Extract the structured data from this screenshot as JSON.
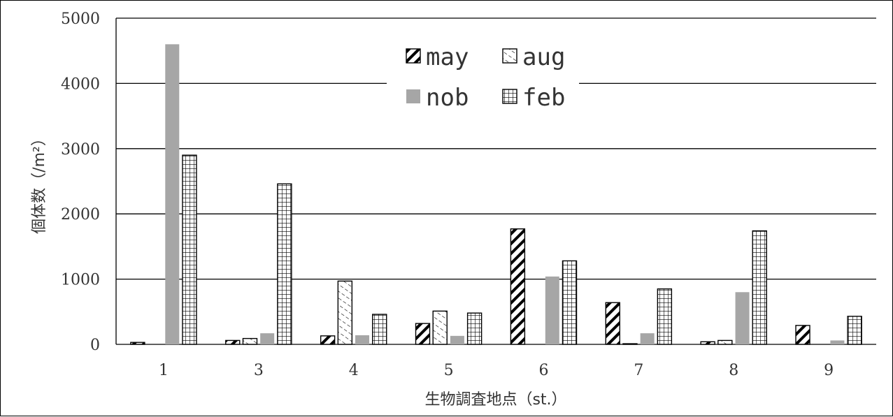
{
  "chart_data": {
    "type": "bar",
    "title": "",
    "xlabel": "生物調査地点（st.）",
    "ylabel": "個体数（/m²）",
    "ylim": [
      0,
      5000
    ],
    "yticks": [
      "0",
      "1000",
      "2000",
      "3000",
      "4000",
      "5000"
    ],
    "categories": [
      "1",
      "3",
      "4",
      "5",
      "6",
      "7",
      "8",
      "9"
    ],
    "grid": true,
    "legend": "top-center",
    "series": [
      {
        "name": "may",
        "pattern": "diagonal-bold",
        "values": [
          30,
          60,
          130,
          320,
          1770,
          640,
          40,
          290
        ]
      },
      {
        "name": "aug",
        "pattern": "dashed-diagonal",
        "values": [
          0,
          90,
          970,
          510,
          0,
          10,
          60,
          0
        ]
      },
      {
        "name": "nob",
        "pattern": "solid-gray",
        "color": "#a6a6a6",
        "values": [
          4600,
          170,
          140,
          130,
          1040,
          170,
          800,
          60
        ]
      },
      {
        "name": "feb",
        "pattern": "grid",
        "values": [
          2900,
          2460,
          460,
          480,
          1280,
          850,
          1740,
          430
        ]
      }
    ]
  }
}
